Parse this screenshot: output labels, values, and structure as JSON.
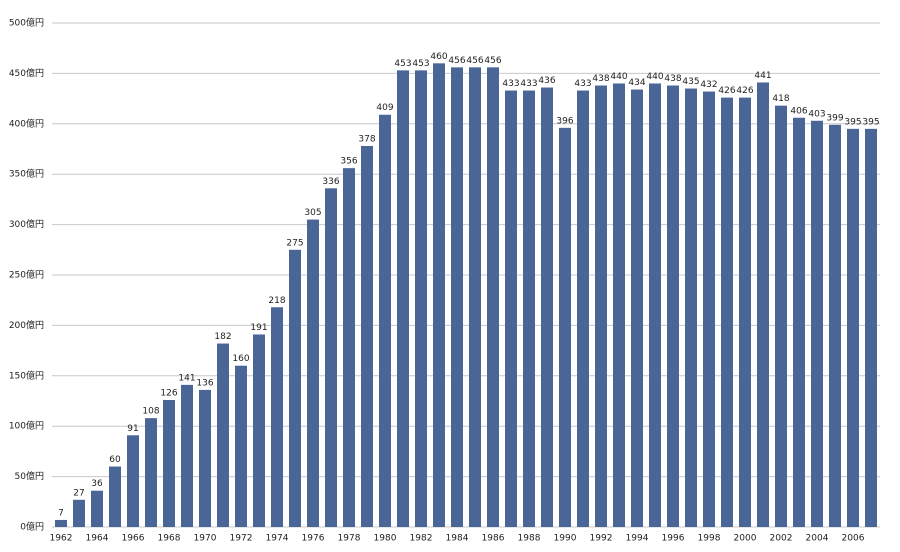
{
  "chart_data": {
    "type": "bar",
    "categories": [
      "1962",
      null,
      "1964",
      null,
      "1966",
      null,
      "1968",
      null,
      "1970",
      null,
      "1972",
      null,
      "1974",
      null,
      "1976",
      null,
      "1978",
      null,
      "1980",
      null,
      "1982",
      null,
      "1984",
      null,
      "1986",
      null,
      "1988",
      null,
      "1990",
      null,
      "1992",
      null,
      "1994",
      null,
      "1996",
      null,
      "1998",
      null,
      "2000",
      null,
      "2002",
      null,
      "2004",
      null,
      "2006",
      null
    ],
    "values": [
      7,
      27,
      36,
      60,
      91,
      108,
      126,
      141,
      136,
      182,
      160,
      191,
      218,
      275,
      305,
      336,
      356,
      378,
      409,
      453,
      453,
      460,
      456,
      456,
      456,
      433,
      433,
      436,
      396,
      433,
      438,
      440,
      434,
      440,
      438,
      435,
      432,
      426,
      426,
      441,
      418,
      406,
      403,
      399,
      395,
      395
    ],
    "color": "#4a6697",
    "ylim": [
      0,
      500
    ],
    "yticks": [
      {
        "value": 0,
        "label": "0億円"
      },
      {
        "value": 50,
        "label": "50億円"
      },
      {
        "value": 100,
        "label": "100億円"
      },
      {
        "value": 150,
        "label": "150億円"
      },
      {
        "value": 200,
        "label": "200億円"
      },
      {
        "value": 250,
        "label": "250億円"
      },
      {
        "value": 300,
        "label": "300億円"
      },
      {
        "value": 350,
        "label": "350億円"
      },
      {
        "value": 400,
        "label": "400億円"
      },
      {
        "value": 450,
        "label": "450億円"
      },
      {
        "value": 500,
        "label": "500億円"
      }
    ],
    "grid": true
  }
}
